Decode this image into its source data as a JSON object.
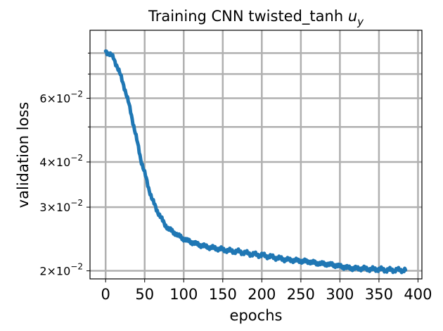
{
  "chart_data": {
    "type": "line",
    "title": "Training CNN twisted_tanh u_y",
    "title_main": "Training CNN twisted_tanh ",
    "title_math": "u",
    "title_sub": "y",
    "xlabel": "epochs",
    "ylabel": "validation loss",
    "y_scale": "log",
    "xlim": [
      -20,
      405
    ],
    "ylim": [
      0.019,
      0.0925
    ],
    "grid": true,
    "x_ticks": [
      0,
      50,
      100,
      150,
      200,
      250,
      300,
      350,
      400
    ],
    "x_tick_labels": [
      "0",
      "50",
      "100",
      "150",
      "200",
      "250",
      "300",
      "350",
      "400"
    ],
    "y_major_ticks": [
      0.02,
      0.03,
      0.04,
      0.06
    ],
    "y_tick_labels": [
      {
        "value": 0.02,
        "mantissa": "2",
        "base": "10",
        "exp": "−2"
      },
      {
        "value": 0.03,
        "mantissa": "3",
        "base": "10",
        "exp": "−2"
      },
      {
        "value": 0.04,
        "mantissa": "4",
        "base": "10",
        "exp": "−2"
      },
      {
        "value": 0.06,
        "mantissa": "6",
        "base": "10",
        "exp": "−2"
      }
    ],
    "y_minor_ticks": [
      0.05,
      0.07,
      0.08
    ],
    "color": "#1f77b4",
    "series": [
      {
        "x": [
          0,
          5,
          10,
          15,
          20,
          25,
          30,
          35,
          40,
          45,
          50,
          55,
          60,
          65,
          70,
          75,
          80,
          90,
          100,
          110,
          120,
          130,
          140,
          150,
          160,
          170,
          180,
          190,
          200,
          210,
          220,
          230,
          240,
          250,
          260,
          270,
          280,
          290,
          300,
          310,
          320,
          330,
          340,
          350,
          360,
          370,
          384
        ],
        "y": [
          0.081,
          0.0796,
          0.0776,
          0.0733,
          0.0685,
          0.0632,
          0.0576,
          0.0515,
          0.046,
          0.0407,
          0.0373,
          0.0339,
          0.0314,
          0.0296,
          0.0283,
          0.027,
          0.0262,
          0.0253,
          0.0245,
          0.024,
          0.0236,
          0.0233,
          0.0231,
          0.0229,
          0.0227,
          0.0226,
          0.0224,
          0.0222,
          0.0221,
          0.0219,
          0.0217,
          0.0215,
          0.0214,
          0.0213,
          0.0212,
          0.021,
          0.0209,
          0.0208,
          0.0206,
          0.0204,
          0.0203,
          0.0203,
          0.0202,
          0.0202,
          0.0201,
          0.0201,
          0.0201
        ]
      }
    ]
  }
}
